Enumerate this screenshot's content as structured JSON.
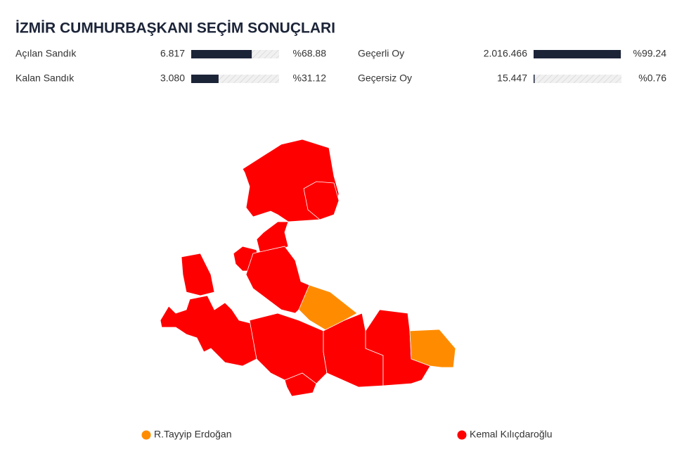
{
  "header": {
    "title": "İZMİR CUMHURBAŞKANI SEÇİM SONUÇLARI"
  },
  "stats": [
    {
      "label": "Açılan Sandık",
      "count": "6.817",
      "percent": {
        "value": 68.88,
        "label": "%68.88"
      }
    },
    {
      "label": "Kalan Sandık",
      "count": "3.080",
      "percent": {
        "value": 31.12,
        "label": "%31.12"
      }
    },
    {
      "label": "Geçerli Oy",
      "count": "2.016.466",
      "percent": {
        "value": 99.24,
        "label": "%99.24"
      }
    },
    {
      "label": "Geçersiz Oy",
      "count": "15.447",
      "percent": {
        "value": 0.76,
        "label": "%0.76"
      }
    }
  ],
  "legend": [
    {
      "name": "R.Tayyip Erdoğan",
      "color": "#ff8c00"
    },
    {
      "name": "Kemal Kılıçdaroğlu",
      "color": "#ff0000"
    }
  ]
}
